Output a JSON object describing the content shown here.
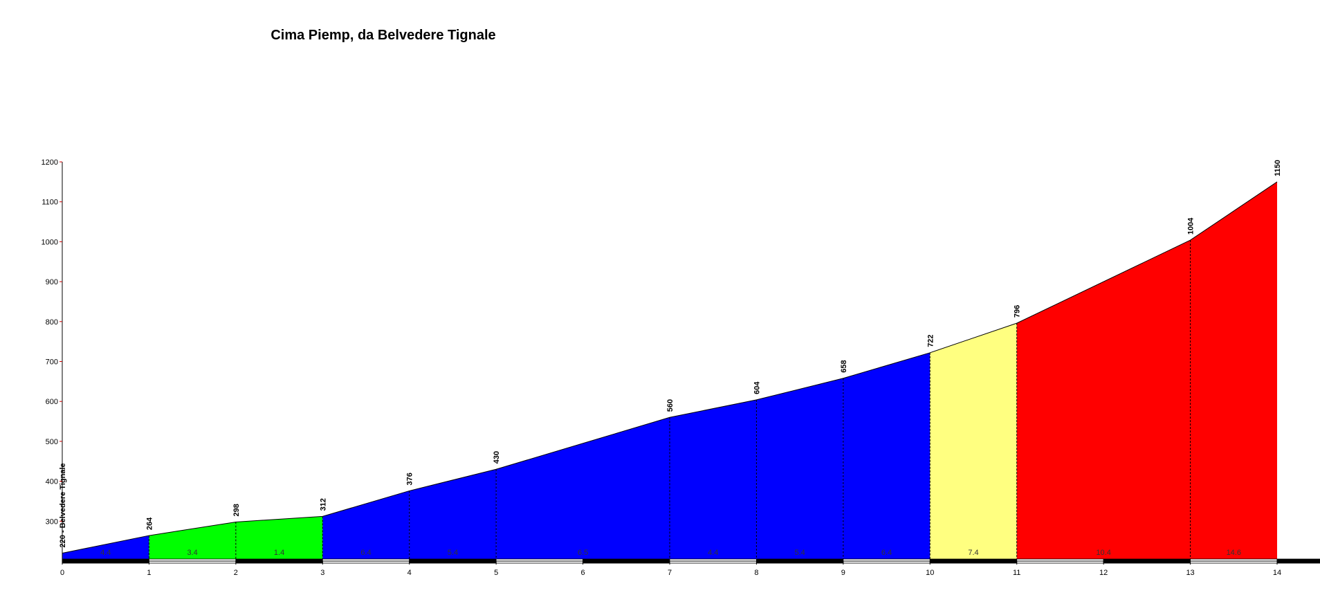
{
  "chart_data": {
    "type": "climb-profile",
    "title": "Cima Piemp, da Belvedere Tignale",
    "x": [
      0,
      1,
      2,
      3,
      4,
      5,
      7,
      8,
      9,
      10,
      11,
      13,
      14
    ],
    "values": [
      220,
      264,
      298,
      312,
      376,
      430,
      560,
      604,
      658,
      722,
      796,
      1004,
      1150
    ],
    "value_labels": [
      "220 - Belvedere Tignale",
      "264",
      "298",
      "312",
      "376",
      "430",
      "560",
      "604",
      "658",
      "722",
      "796",
      "1004",
      "1150"
    ],
    "grades": [
      4.4,
      3.4,
      1.4,
      6.4,
      5.4,
      6.5,
      4.4,
      5.4,
      6.4,
      7.4,
      10.4,
      14.6
    ],
    "segment_colors": [
      "#0000ff",
      "#00ff00",
      "#00ff00",
      "#0000ff",
      "#0000ff",
      "#0000ff",
      "#0000ff",
      "#0000ff",
      "#0000ff",
      "#ffff80",
      "#ff0000",
      "#ff0000"
    ],
    "xlim": [
      0,
      14
    ],
    "xticks": [
      0,
      1,
      2,
      3,
      4,
      5,
      6,
      7,
      8,
      9,
      10,
      11,
      12,
      13,
      14
    ],
    "ylim": [
      200,
      1200
    ],
    "yticks": [
      300,
      400,
      500,
      600,
      700,
      800,
      900,
      1000,
      1100,
      1200
    ]
  }
}
